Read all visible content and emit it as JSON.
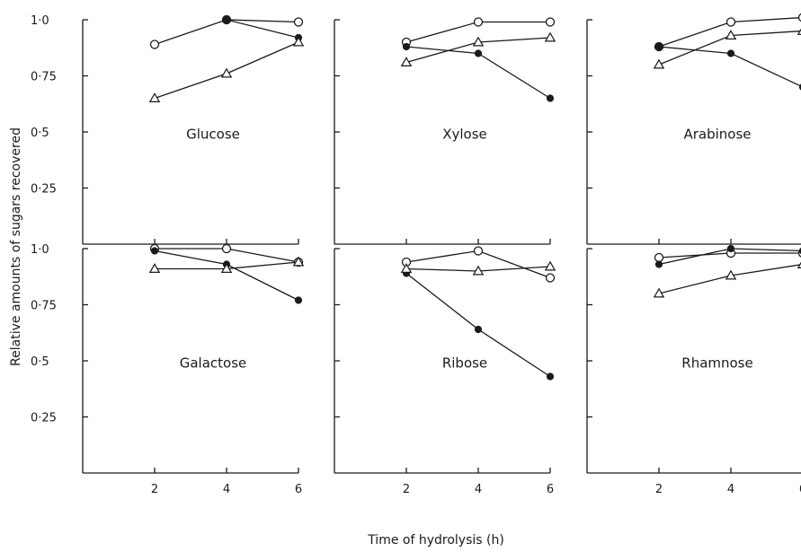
{
  "chart_data": {
    "type": "line",
    "xlabel": "Time of hydrolysis (h)",
    "ylabel": "Relative amounts of sugars recovered",
    "x_ticks": [
      "2",
      "4",
      "6"
    ],
    "y_ticks": [
      "0·25",
      "0·5",
      "0·75",
      "1·0"
    ],
    "xlim": [
      0,
      6
    ],
    "ylim": [
      0,
      1.0
    ],
    "grid": false,
    "panels": [
      {
        "label": "Glucose",
        "series": [
          {
            "marker": "open-circle",
            "x": [
              2,
              4,
              6
            ],
            "y": [
              0.89,
              1.0,
              0.99
            ]
          },
          {
            "marker": "filled-circle",
            "x": [
              4,
              6
            ],
            "y": [
              1.0,
              0.92
            ]
          },
          {
            "marker": "open-triangle",
            "x": [
              2,
              4,
              6
            ],
            "y": [
              0.65,
              0.76,
              0.9
            ]
          }
        ]
      },
      {
        "label": "Xylose",
        "series": [
          {
            "marker": "open-circle",
            "x": [
              2,
              4,
              6
            ],
            "y": [
              0.9,
              0.99,
              0.99
            ]
          },
          {
            "marker": "filled-circle",
            "x": [
              2,
              4,
              6
            ],
            "y": [
              0.88,
              0.85,
              0.65
            ]
          },
          {
            "marker": "open-triangle",
            "x": [
              2,
              4,
              6
            ],
            "y": [
              0.81,
              0.9,
              0.92
            ]
          }
        ]
      },
      {
        "label": "Arabinose",
        "series": [
          {
            "marker": "open-circle",
            "x": [
              2,
              4,
              6
            ],
            "y": [
              0.88,
              0.99,
              1.01
            ]
          },
          {
            "marker": "filled-circle",
            "x": [
              2,
              4,
              6
            ],
            "y": [
              0.88,
              0.85,
              0.7
            ]
          },
          {
            "marker": "open-triangle",
            "x": [
              2,
              4,
              6
            ],
            "y": [
              0.8,
              0.93,
              0.95
            ]
          }
        ]
      },
      {
        "label": "Galactose",
        "series": [
          {
            "marker": "open-circle",
            "x": [
              2,
              4,
              6
            ],
            "y": [
              1.0,
              1.0,
              0.94
            ]
          },
          {
            "marker": "filled-circle",
            "x": [
              2,
              4,
              6
            ],
            "y": [
              0.99,
              0.93,
              0.77
            ]
          },
          {
            "marker": "open-triangle",
            "x": [
              2,
              4,
              6
            ],
            "y": [
              0.91,
              0.91,
              0.94
            ]
          }
        ]
      },
      {
        "label": "Ribose",
        "series": [
          {
            "marker": "open-circle",
            "x": [
              2,
              4,
              6
            ],
            "y": [
              0.94,
              0.99,
              0.87
            ]
          },
          {
            "marker": "filled-circle",
            "x": [
              2,
              4,
              6
            ],
            "y": [
              0.89,
              0.64,
              0.43
            ]
          },
          {
            "marker": "open-triangle",
            "x": [
              2,
              4,
              6
            ],
            "y": [
              0.91,
              0.9,
              0.92
            ]
          }
        ]
      },
      {
        "label": "Rhamnose",
        "series": [
          {
            "marker": "open-circle",
            "x": [
              2,
              4,
              6
            ],
            "y": [
              0.96,
              0.98,
              0.98
            ]
          },
          {
            "marker": "filled-circle",
            "x": [
              2,
              4,
              6
            ],
            "y": [
              0.93,
              1.0,
              0.99
            ]
          },
          {
            "marker": "open-triangle",
            "x": [
              2,
              4,
              6
            ],
            "y": [
              0.8,
              0.88,
              0.93
            ]
          }
        ]
      }
    ]
  }
}
